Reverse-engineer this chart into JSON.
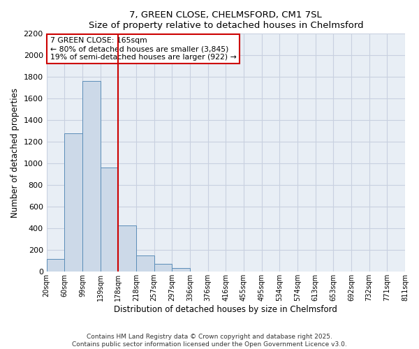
{
  "title": "7, GREEN CLOSE, CHELMSFORD, CM1 7SL",
  "subtitle": "Size of property relative to detached houses in Chelmsford",
  "xlabel": "Distribution of detached houses by size in Chelmsford",
  "ylabel": "Number of detached properties",
  "bar_heights": [
    120,
    1280,
    1760,
    960,
    430,
    150,
    75,
    35,
    0,
    0,
    0,
    0,
    0,
    0,
    0,
    0,
    0,
    0,
    0,
    0
  ],
  "bin_labels": [
    "20sqm",
    "60sqm",
    "99sqm",
    "139sqm",
    "178sqm",
    "218sqm",
    "257sqm",
    "297sqm",
    "336sqm",
    "376sqm",
    "416sqm",
    "455sqm",
    "495sqm",
    "534sqm",
    "574sqm",
    "613sqm",
    "653sqm",
    "692sqm",
    "732sqm",
    "771sqm",
    "811sqm"
  ],
  "bar_color": "#ccd9e8",
  "bar_edge_color": "#5b8db8",
  "vline_color": "#cc0000",
  "vline_bin_index": 3,
  "annotation_title": "7 GREEN CLOSE: 165sqm",
  "annotation_line1": "← 80% of detached houses are smaller (3,845)",
  "annotation_line2": "19% of semi-detached houses are larger (922) →",
  "annotation_box_color": "#cc0000",
  "ylim": [
    0,
    2200
  ],
  "yticks": [
    0,
    200,
    400,
    600,
    800,
    1000,
    1200,
    1400,
    1600,
    1800,
    2000,
    2200
  ],
  "grid_color": "#c8d0e0",
  "background_color": "#e8eef5",
  "footer_line1": "Contains HM Land Registry data © Crown copyright and database right 2025.",
  "footer_line2": "Contains public sector information licensed under the Open Government Licence v3.0."
}
